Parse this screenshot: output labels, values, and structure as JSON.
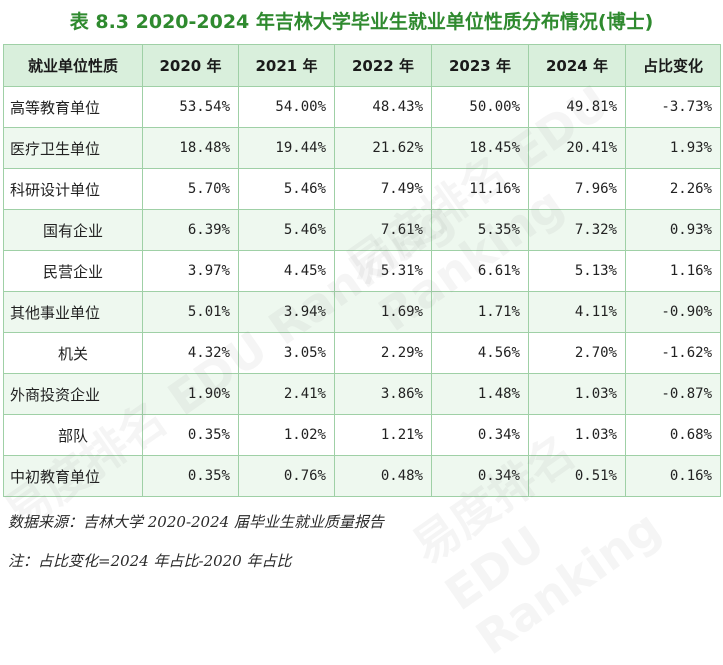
{
  "title": "表 8.3 2020-2024 年吉林大学毕业生就业单位性质分布情况(博士)",
  "table": {
    "headers": [
      "就业单位性质",
      "2020 年",
      "2021 年",
      "2022 年",
      "2023 年",
      "2024 年",
      "占比变化"
    ],
    "rows": [
      {
        "label": "高等教育单位",
        "values": [
          "53.54%",
          "54.00%",
          "48.43%",
          "50.00%",
          "49.81%",
          "-3.73%"
        ]
      },
      {
        "label": "医疗卫生单位",
        "values": [
          "18.48%",
          "19.44%",
          "21.62%",
          "18.45%",
          "20.41%",
          "1.93%"
        ]
      },
      {
        "label": "科研设计单位",
        "values": [
          "5.70%",
          "5.46%",
          "7.49%",
          "11.16%",
          "7.96%",
          "2.26%"
        ]
      },
      {
        "label": "国有企业",
        "values": [
          "6.39%",
          "5.46%",
          "7.61%",
          "5.35%",
          "7.32%",
          "0.93%"
        ]
      },
      {
        "label": "民营企业",
        "values": [
          "3.97%",
          "4.45%",
          "5.31%",
          "6.61%",
          "5.13%",
          "1.16%"
        ]
      },
      {
        "label": "其他事业单位",
        "values": [
          "5.01%",
          "3.94%",
          "1.69%",
          "1.71%",
          "4.11%",
          "-0.90%"
        ]
      },
      {
        "label": "机关",
        "values": [
          "4.32%",
          "3.05%",
          "2.29%",
          "4.56%",
          "2.70%",
          "-1.62%"
        ]
      },
      {
        "label": "外商投资企业",
        "values": [
          "1.90%",
          "2.41%",
          "3.86%",
          "1.48%",
          "1.03%",
          "-0.87%"
        ]
      },
      {
        "label": "部队",
        "values": [
          "0.35%",
          "1.02%",
          "1.21%",
          "0.34%",
          "1.03%",
          "0.68%"
        ]
      },
      {
        "label": "中初教育单位",
        "values": [
          "0.35%",
          "0.76%",
          "0.48%",
          "0.34%",
          "0.51%",
          "0.16%"
        ]
      }
    ]
  },
  "notes": {
    "source": "数据来源：吉林大学 2020-2024 届毕业生就业质量报告",
    "definition": "注：占比变化=2024 年占比-2020 年占比"
  },
  "watermark": {
    "text": "易度排名 EDU Ranking"
  },
  "colors": {
    "title": "#2f8a2f",
    "header_bg": "#d9efdc",
    "stripe_bg": "#eef8ef",
    "border": "#9fd0a6"
  }
}
